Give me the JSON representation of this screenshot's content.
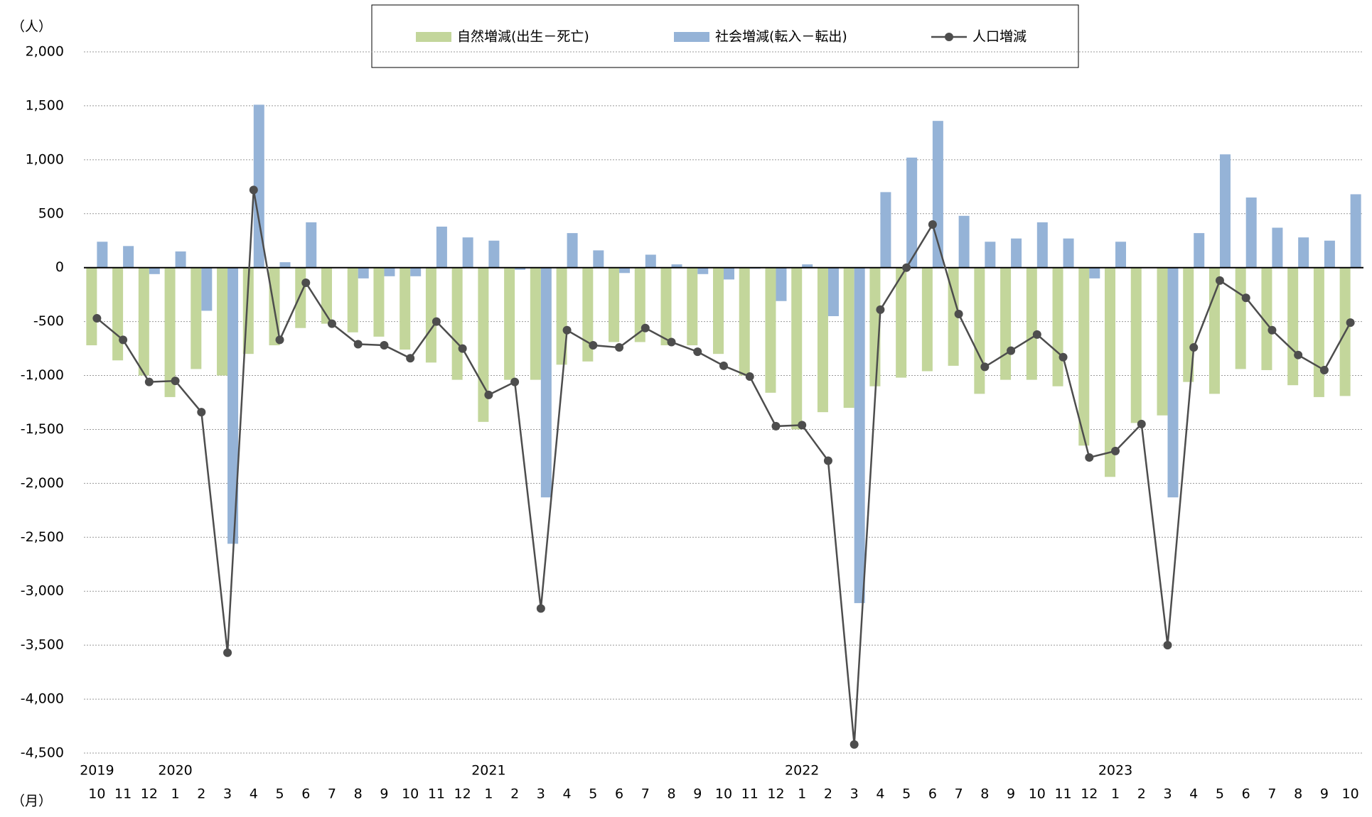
{
  "chart_data": {
    "type": "bar_line",
    "y_unit_label": "（人）",
    "x_unit_label": "（月）",
    "categories": [
      "10",
      "11",
      "12",
      "1",
      "2",
      "3",
      "4",
      "5",
      "6",
      "7",
      "8",
      "9",
      "10",
      "11",
      "12",
      "1",
      "2",
      "3",
      "4",
      "5",
      "6",
      "7",
      "8",
      "9",
      "10",
      "11",
      "12",
      "1",
      "2",
      "3",
      "4",
      "5",
      "6",
      "7",
      "8",
      "9",
      "10",
      "11",
      "12",
      "1",
      "2",
      "3",
      "4",
      "5",
      "6",
      "7",
      "8",
      "9",
      "10"
    ],
    "year_labels": [
      "2019",
      null,
      null,
      "2020",
      null,
      null,
      null,
      null,
      null,
      null,
      null,
      null,
      null,
      null,
      null,
      "2021",
      null,
      null,
      null,
      null,
      null,
      null,
      null,
      null,
      null,
      null,
      null,
      "2022",
      null,
      null,
      null,
      null,
      null,
      null,
      null,
      null,
      null,
      null,
      null,
      "2023",
      null,
      null,
      null,
      null,
      null,
      null,
      null,
      null,
      null
    ],
    "series": [
      {
        "name": "自然増減(出生－死亡)",
        "type": "bar",
        "color": "#c3d69b",
        "values": [
          -720,
          -860,
          -1000,
          -1200,
          -940,
          -1000,
          -800,
          -720,
          -560,
          -520,
          -600,
          -640,
          -760,
          -880,
          -1040,
          -1430,
          -1040,
          -1040,
          -900,
          -870,
          -690,
          -690,
          -720,
          -720,
          -800,
          -1000,
          -1160,
          -1500,
          -1340,
          -1300,
          -1100,
          -1020,
          -960,
          -910,
          -1170,
          -1040,
          -1040,
          -1100,
          -1650,
          -1940,
          -1440,
          -1370,
          -1060,
          -1170,
          -940,
          -950,
          -1090,
          -1200,
          -1190
        ]
      },
      {
        "name": "社会増減(転入－転出)",
        "type": "bar",
        "color": "#95b3d7",
        "values": [
          240,
          200,
          -60,
          150,
          -400,
          -2560,
          1510,
          50,
          420,
          0,
          -100,
          -80,
          -80,
          380,
          280,
          250,
          -20,
          -2130,
          320,
          160,
          -50,
          120,
          30,
          -60,
          -110,
          -10,
          -310,
          30,
          -450,
          -3110,
          700,
          1020,
          1360,
          480,
          240,
          270,
          420,
          270,
          -100,
          240,
          0,
          -2130,
          320,
          1050,
          650,
          370,
          280,
          250,
          680
        ]
      },
      {
        "name": "人口増減",
        "type": "line",
        "color": "#4d4d4d",
        "values": [
          -470,
          -670,
          -1060,
          -1050,
          -1340,
          -3570,
          720,
          -670,
          -140,
          -520,
          -710,
          -720,
          -840,
          -500,
          -750,
          -1180,
          -1060,
          -3160,
          -580,
          -720,
          -740,
          -560,
          -690,
          -780,
          -910,
          -1010,
          -1470,
          -1460,
          -1790,
          -4420,
          -390,
          0,
          400,
          -430,
          -920,
          -770,
          -620,
          -830,
          -1760,
          -1700,
          -1450,
          -3500,
          -740,
          -120,
          -280,
          -580,
          -810,
          -950,
          -510
        ]
      }
    ],
    "ylim": [
      -4500,
      2000
    ],
    "yticks": [
      {
        "value": -4500,
        "label": "-4,500"
      },
      {
        "value": -4000,
        "label": "-4,000"
      },
      {
        "value": -3500,
        "label": "-3,500"
      },
      {
        "value": -3000,
        "label": "-3,000"
      },
      {
        "value": -2500,
        "label": "-2,500"
      },
      {
        "value": -2000,
        "label": "-2,000"
      },
      {
        "value": -1500,
        "label": "-1,500"
      },
      {
        "value": -1000,
        "label": "-1,000"
      },
      -500,
      0,
      500,
      {
        "value": 1000,
        "label": "1,000"
      },
      {
        "value": 1500,
        "label": "1,500"
      },
      {
        "value": 2000,
        "label": "2,000"
      }
    ],
    "grid": true
  }
}
